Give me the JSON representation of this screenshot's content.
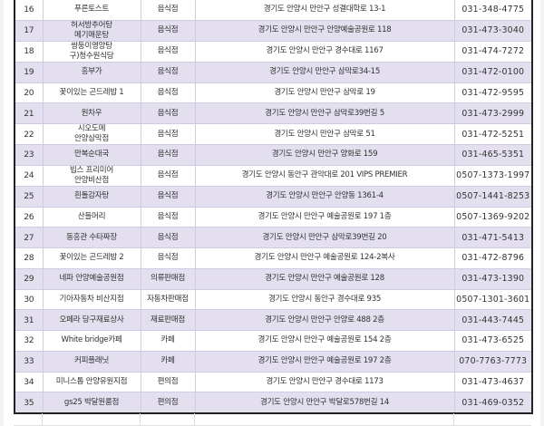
{
  "colors": {
    "alt_row": "#e3dfee",
    "border": "#cfcbe0"
  },
  "rows": [
    {
      "no": "16",
      "name": [
        "푸른토스트"
      ],
      "type": "음식점",
      "address": "경기도 안양시 만안구 성결대학로 13-1",
      "phone": "031-348-4775"
    },
    {
      "no": "17",
      "name": [
        "허서방추어탕",
        "메기매운탕"
      ],
      "type": "음식점",
      "address": "경기도 안양시 만안구 안양예술공원로 118",
      "phone": "031-473-3040"
    },
    {
      "no": "18",
      "name": [
        "쌍둥이영양탕",
        "구)청수원식당"
      ],
      "type": "음식점",
      "address": "경기도 안양시 만안구 경수대로 1167",
      "phone": "031-474-7272"
    },
    {
      "no": "19",
      "name": [
        "흥부가"
      ],
      "type": "음식점",
      "address": "경기도 안양시 만안구 삼막로34-15",
      "phone": "031-472-0100"
    },
    {
      "no": "20",
      "name": [
        "꽃이있는 곤드레밥 1"
      ],
      "type": "음식점",
      "address": "경기도 안양시 만안구 삼막로 19",
      "phone": "031-472-9595"
    },
    {
      "no": "21",
      "name": [
        "원차우"
      ],
      "type": "음식점",
      "address": "경기도 안양시 만안구 삼막로39번길 5",
      "phone": "031-473-2999"
    },
    {
      "no": "22",
      "name": [
        "시오도메",
        "안양삼막점"
      ],
      "type": "음식점",
      "address": "경기도 안양시 만안구 삼막로 51",
      "phone": "031-472-5251"
    },
    {
      "no": "23",
      "name": [
        "만복순대국"
      ],
      "type": "음식점",
      "address": "경기도 안양시 만안구 양화로 159",
      "phone": "031-465-5351"
    },
    {
      "no": "24",
      "name": [
        "빕스 프리미어",
        "안양비산점"
      ],
      "type": "음식점",
      "address": "경기도 안양시 동안구 관악대로 201 VIPS PREMIER",
      "phone": "0507-1373-1997"
    },
    {
      "no": "25",
      "name": [
        "흰돌감자탕"
      ],
      "type": "음식점",
      "address": "경기도 안양시 만안구 안양동 1361-4",
      "phone": "0507-1441-8253"
    },
    {
      "no": "26",
      "name": [
        "산들머리"
      ],
      "type": "음식점",
      "address": "경기도 안양시 만안구 예술공원로 197 1층",
      "phone": "0507-1369-9202"
    },
    {
      "no": "27",
      "name": [
        "동흥관 수타짜장"
      ],
      "type": "음식점",
      "address": "경기도 안양시 만안구 삼막로39번길 20",
      "phone": "031-471-5413"
    },
    {
      "no": "28",
      "name": [
        "꽃이있는 곤드레밥 2"
      ],
      "type": "음식점",
      "address": "경기도 안양시 만안구 예술공원로 124-2복사",
      "phone": "031-472-8796"
    },
    {
      "no": "29",
      "name": [
        "네파 안양예술공원점"
      ],
      "type": "의류판매점",
      "address": "경기도 안양시 만안구 예술공원로 128",
      "phone": "031-473-1390"
    },
    {
      "no": "30",
      "name": [
        "기아자동차 비산지점"
      ],
      "type": "자동차판매점",
      "address": "경기도 안양시 동안구 경수대로 935",
      "phone": "0507-1301-3601"
    },
    {
      "no": "31",
      "name": [
        "오페라 당구재료상사"
      ],
      "type": "재료판매점",
      "address": "경기도 안양시 만안구 안양로 488 2층",
      "phone": "031-443-7445"
    },
    {
      "no": "32",
      "name": [
        "White bridge카페"
      ],
      "type": "카페",
      "address": "경기도 안양시 만안구 예술공원로 154 2층",
      "phone": "031-473-6525"
    },
    {
      "no": "33",
      "name": [
        "커피플래닛"
      ],
      "type": "카페",
      "address": "경기도 안양시 만안구 예술공원로 197 2층",
      "phone": "070-7763-7773"
    },
    {
      "no": "34",
      "name": [
        "미니스톱 안양유원지점"
      ],
      "type": "편의점",
      "address": "경기도 안양시 만안구 경수대로 1173",
      "phone": "031-473-4637"
    },
    {
      "no": "35",
      "name": [
        "gs25 박달원룸점"
      ],
      "type": "편의점",
      "address": "경기도 안양시 만안구 박달로578번길 14",
      "phone": "031-469-0352"
    }
  ]
}
